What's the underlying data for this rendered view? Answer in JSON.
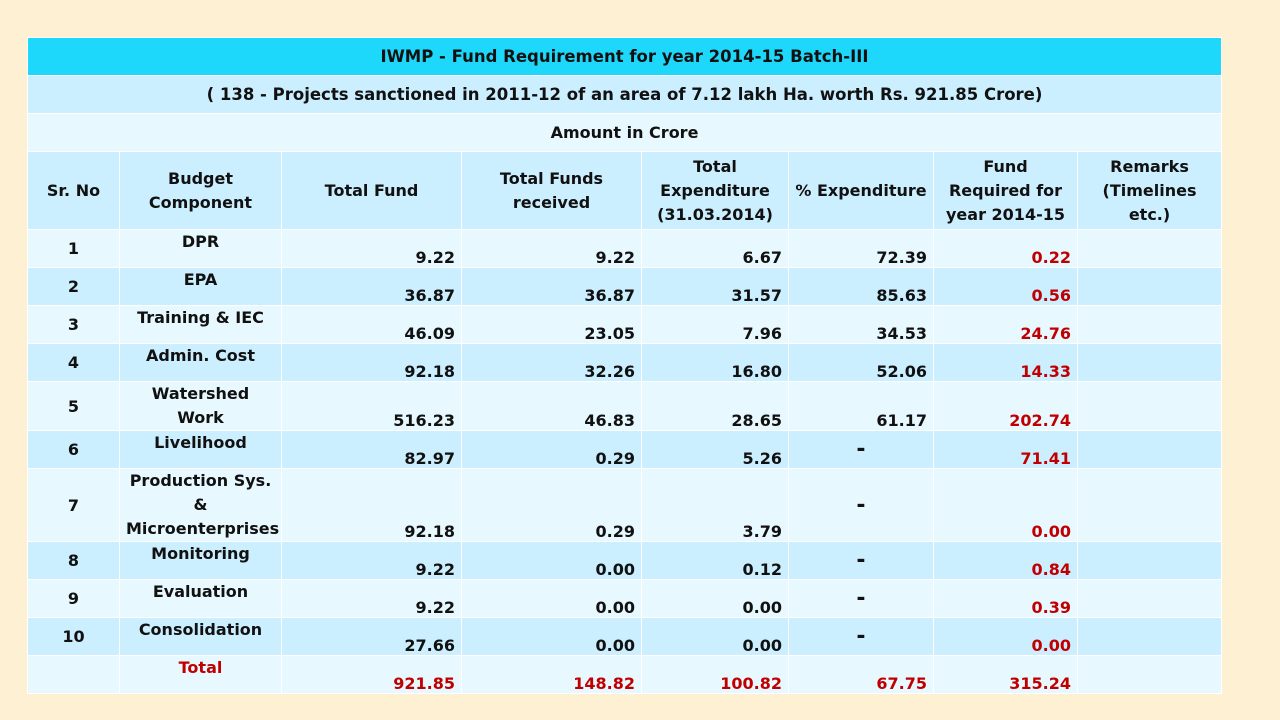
{
  "title": "IWMP - Fund Requirement for year 2014-15 Batch-III",
  "subtitle": "( 138 - Projects sanctioned  in 2011-12 of an area of 7.12 lakh Ha. worth Rs. 921.85 Crore)",
  "unit_note": "Amount in Crore",
  "headers": {
    "sr": "Sr. No",
    "component": "Budget Component",
    "total_fund": "Total  Fund",
    "received": "Total  Funds received",
    "expenditure": "Total Expenditure (31.03.2014)",
    "pct": "% Expenditure",
    "required": "Fund Required for year 2014-15",
    "remarks": "Remarks (Timelines etc.)"
  },
  "rows": [
    {
      "sr": "1",
      "component": "DPR",
      "total_fund": "9.22",
      "received": "9.22",
      "expenditure": "6.67",
      "pct": "72.39",
      "required": "0.22",
      "remarks": ""
    },
    {
      "sr": "2",
      "component": "EPA",
      "total_fund": "36.87",
      "received": "36.87",
      "expenditure": "31.57",
      "pct": "85.63",
      "required": "0.56",
      "remarks": ""
    },
    {
      "sr": "3",
      "component": "Training & IEC",
      "total_fund": "46.09",
      "received": "23.05",
      "expenditure": "7.96",
      "pct": "34.53",
      "required": "24.76",
      "remarks": ""
    },
    {
      "sr": "4",
      "component": "Admin. Cost",
      "total_fund": "92.18",
      "received": "32.26",
      "expenditure": "16.80",
      "pct": "52.06",
      "required": "14.33",
      "remarks": ""
    },
    {
      "sr": "5",
      "component": "Watershed Work",
      "total_fund": "516.23",
      "received": "46.83",
      "expenditure": "28.65",
      "pct": "61.17",
      "required": "202.74",
      "remarks": ""
    },
    {
      "sr": "6",
      "component": "Livelihood",
      "total_fund": "82.97",
      "received": "0.29",
      "expenditure": "5.26",
      "pct": "-",
      "required": "71.41",
      "remarks": ""
    },
    {
      "sr": "7",
      "component": "Production Sys. & Microenterprises",
      "total_fund": "92.18",
      "received": "0.29",
      "expenditure": "3.79",
      "pct": "-",
      "required": "0.00",
      "remarks": ""
    },
    {
      "sr": "8",
      "component": "Monitoring",
      "total_fund": "9.22",
      "received": "0.00",
      "expenditure": "0.12",
      "pct": "-",
      "required": "0.84",
      "remarks": ""
    },
    {
      "sr": "9",
      "component": "Evaluation",
      "total_fund": "9.22",
      "received": "0.00",
      "expenditure": "0.00",
      "pct": "-",
      "required": "0.39",
      "remarks": ""
    },
    {
      "sr": "10",
      "component": "Consolidation",
      "total_fund": "27.66",
      "received": "0.00",
      "expenditure": "0.00",
      "pct": "-",
      "required": "0.00",
      "remarks": ""
    }
  ],
  "total": {
    "label": "Total",
    "total_fund": "921.85",
    "received": "148.82",
    "expenditure": "100.82",
    "pct": "67.75",
    "required": "315.24"
  },
  "colors": {
    "title_bg": "#1ed8fb",
    "band_dark": "#ccefff",
    "band_light": "#e8f8ff",
    "highlight_red": "#c00000",
    "page_bg": "#fdf0d3"
  }
}
